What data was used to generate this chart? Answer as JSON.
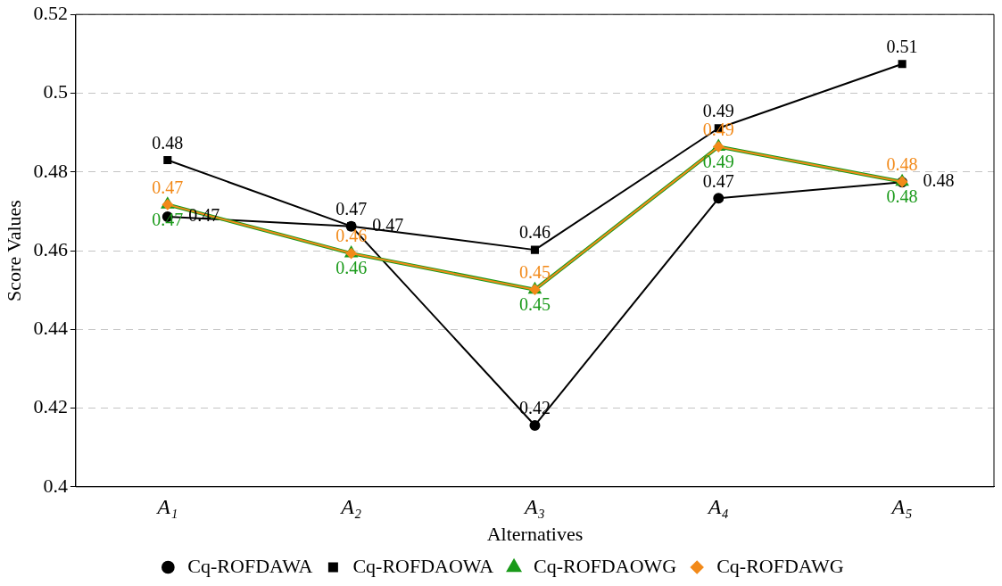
{
  "chart_data": {
    "type": "line",
    "xlabel": "Alternatives",
    "ylabel": "Score Values",
    "categories": [
      "A₁",
      "A₂",
      "A₃",
      "A₄",
      "A₅"
    ],
    "ylim": [
      0.4,
      0.52
    ],
    "yticks": [
      0.4,
      0.42,
      0.44,
      0.46,
      0.48,
      0.5,
      0.52
    ],
    "grid": "y",
    "legend": "bottom",
    "series": [
      {
        "name": "Cq-ROFDAWA",
        "color": "#000000",
        "marker": "circle",
        "values": [
          0.4686,
          0.4662,
          0.4156,
          0.4733,
          0.4774
        ],
        "value_labels": [
          "0.47",
          "0.47",
          "0.42",
          "0.47",
          "0.48"
        ]
      },
      {
        "name": "Cq-ROFDAOWA",
        "color": "#000000",
        "marker": "square",
        "values": [
          0.483,
          0.4662,
          0.4602,
          0.4911,
          0.5074
        ],
        "value_labels": [
          "0.48",
          "0.47",
          "0.46",
          "0.49",
          "0.51"
        ]
      },
      {
        "name": "Cq-ROFDAOWG",
        "color": "#1a9a1a",
        "marker": "triangle",
        "values": [
          0.4717,
          0.4593,
          0.4501,
          0.4864,
          0.4775
        ],
        "value_labels": [
          "0.47",
          "0.46",
          "0.45",
          "0.49",
          "0.48"
        ]
      },
      {
        "name": "Cq-ROFDAWG",
        "color": "#f28a1a",
        "marker": "diamond",
        "values": [
          0.4717,
          0.4593,
          0.4501,
          0.4864,
          0.4775
        ],
        "value_labels": [
          "0.47",
          "0.46",
          "0.45",
          "0.49",
          "0.48"
        ]
      }
    ]
  }
}
